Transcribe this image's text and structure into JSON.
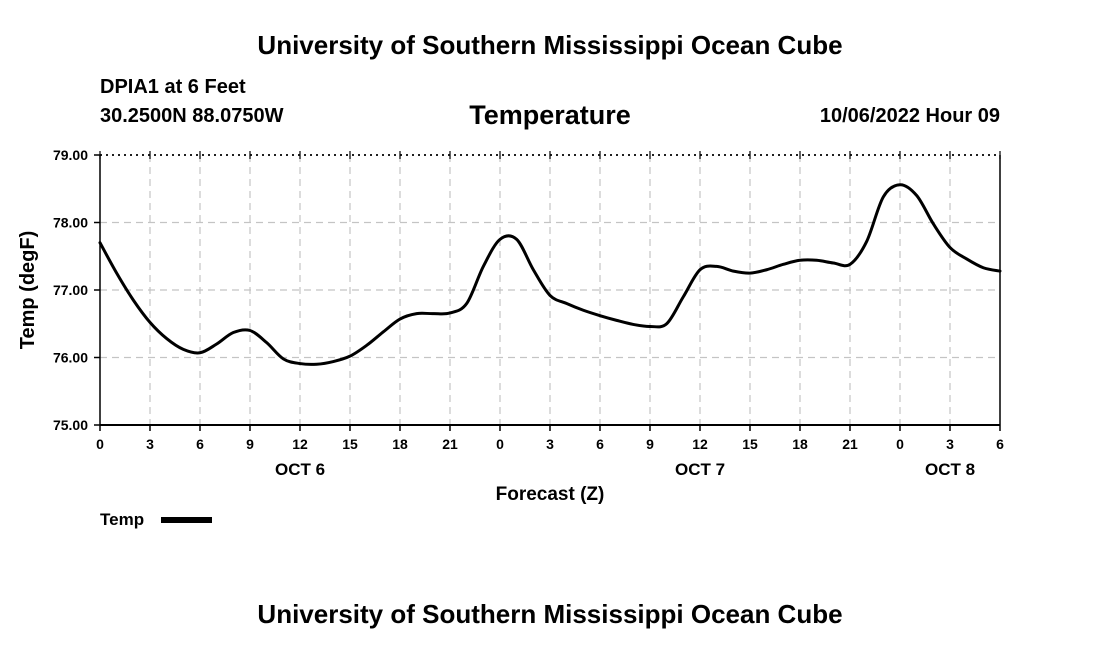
{
  "header": {
    "top_title": "University of Southern Mississippi Ocean Cube",
    "bottom_title": "University of Southern Mississippi Ocean Cube",
    "station": "DPIA1 at 6 Feet",
    "coords": "30.2500N  88.0750W",
    "datetime": "10/06/2022 Hour 09"
  },
  "chart_data": {
    "type": "line",
    "title": "Temperature",
    "xlabel": "Forecast (Z)",
    "ylabel": "Temp (degF)",
    "ylim": [
      75.0,
      79.0
    ],
    "yticks": [
      "75.00",
      "76.00",
      "77.00",
      "78.00",
      "79.00"
    ],
    "xlim": [
      0,
      54
    ],
    "xticks": [
      {
        "h": 0,
        "label": "0"
      },
      {
        "h": 3,
        "label": "3"
      },
      {
        "h": 6,
        "label": "6"
      },
      {
        "h": 9,
        "label": "9"
      },
      {
        "h": 12,
        "label": "12"
      },
      {
        "h": 15,
        "label": "15"
      },
      {
        "h": 18,
        "label": "18"
      },
      {
        "h": 21,
        "label": "21"
      },
      {
        "h": 24,
        "label": "0"
      },
      {
        "h": 27,
        "label": "3"
      },
      {
        "h": 30,
        "label": "6"
      },
      {
        "h": 33,
        "label": "9"
      },
      {
        "h": 36,
        "label": "12"
      },
      {
        "h": 39,
        "label": "15"
      },
      {
        "h": 42,
        "label": "18"
      },
      {
        "h": 45,
        "label": "21"
      },
      {
        "h": 48,
        "label": "0"
      },
      {
        "h": 51,
        "label": "3"
      },
      {
        "h": 54,
        "label": "6"
      }
    ],
    "day_labels": [
      {
        "h": 12,
        "label": "OCT 6"
      },
      {
        "h": 36,
        "label": "OCT 7"
      },
      {
        "h": 51,
        "label": "OCT 8"
      }
    ],
    "grid": true,
    "legend": {
      "position": "bottom-left",
      "entries": [
        "Temp"
      ]
    },
    "series": [
      {
        "name": "Temp",
        "color": "#000000",
        "x": [
          0,
          1,
          2,
          3,
          4,
          5,
          6,
          7,
          8,
          9,
          10,
          11,
          12,
          13,
          14,
          15,
          16,
          17,
          18,
          19,
          20,
          21,
          22,
          23,
          24,
          25,
          26,
          27,
          28,
          29,
          30,
          31,
          32,
          33,
          34,
          35,
          36,
          37,
          38,
          39,
          40,
          41,
          42,
          43,
          44,
          45,
          46,
          47,
          48,
          49,
          50,
          51,
          52,
          53,
          54
        ],
        "values": [
          77.7,
          77.25,
          76.85,
          76.52,
          76.28,
          76.12,
          76.07,
          76.2,
          76.37,
          76.4,
          76.22,
          75.98,
          75.91,
          75.9,
          75.94,
          76.02,
          76.18,
          76.38,
          76.57,
          76.65,
          76.65,
          76.66,
          76.8,
          77.35,
          77.75,
          77.75,
          77.3,
          76.92,
          76.8,
          76.7,
          76.62,
          76.55,
          76.49,
          76.46,
          76.5,
          76.9,
          77.3,
          77.35,
          77.28,
          77.25,
          77.3,
          77.38,
          77.44,
          77.44,
          77.4,
          77.38,
          77.72,
          78.38,
          78.56,
          78.4,
          77.98,
          77.63,
          77.46,
          77.33,
          77.28
        ]
      }
    ]
  }
}
